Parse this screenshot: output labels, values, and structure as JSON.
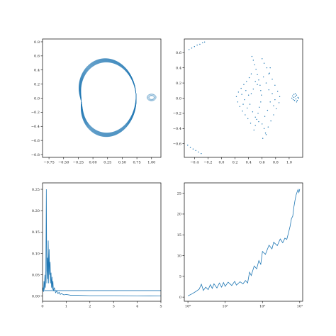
{
  "chart_data": [
    {
      "type": "line",
      "title": "",
      "xlabel": "",
      "ylabel": "",
      "xlim": [
        -0.86,
        1.16
      ],
      "ylim": [
        -0.84,
        0.84
      ],
      "xticks": [
        -0.75,
        -0.5,
        -0.25,
        0.0,
        0.25,
        0.5,
        0.75,
        1.0
      ],
      "xtick_labels": [
        "−0.75",
        "−0.50",
        "−0.25",
        "0.00",
        "0.25",
        "0.50",
        "0.75",
        "1.00"
      ],
      "yticks": [
        -0.8,
        -0.6,
        -0.4,
        -0.2,
        0.0,
        0.2,
        0.4,
        0.6,
        0.8
      ],
      "ytick_labels": [
        "−0.8",
        "−0.6",
        "−0.4",
        "−0.2",
        "0.0",
        "0.2",
        "0.4",
        "0.6",
        "0.8"
      ],
      "grid": false,
      "color": "#1f77b4",
      "series": [
        {
          "kind": "rosette",
          "center": [
            0.0,
            -0.02
          ],
          "radius_mean": 0.47,
          "radius_amplitude": 0.27,
          "x_scale": 1.0,
          "y_scale": 1.0,
          "lobes": 7.3,
          "turns": 38
        },
        {
          "kind": "small_loop",
          "center": [
            1.0,
            0.01
          ],
          "radius_x": 0.08,
          "radius_y": 0.05,
          "turns": 10
        }
      ]
    },
    {
      "type": "scatter",
      "title": "",
      "xlabel": "",
      "ylabel": "",
      "xlim": [
        -0.55,
        1.2
      ],
      "ylim": [
        -0.78,
        0.78
      ],
      "xticks": [
        -0.4,
        -0.2,
        0.0,
        0.2,
        0.4,
        0.6,
        0.8,
        1.0
      ],
      "xtick_labels": [
        "−0.4",
        "−0.2",
        "0.0",
        "0.2",
        "0.4",
        "0.6",
        "0.8",
        "1.0"
      ],
      "yticks": [
        -0.6,
        -0.4,
        -0.2,
        0.0,
        0.2,
        0.4,
        0.6
      ],
      "ytick_labels": [
        "−0.6",
        "−0.4",
        "−0.2",
        "0.0",
        "0.2",
        "0.4",
        "0.6"
      ],
      "grid": false,
      "color": "#1f77b4",
      "points": [
        [
          -0.48,
          0.64
        ],
        [
          -0.44,
          0.66
        ],
        [
          -0.4,
          0.68
        ],
        [
          -0.36,
          0.7
        ],
        [
          -0.32,
          0.71
        ],
        [
          -0.28,
          0.73
        ],
        [
          -0.25,
          0.74
        ],
        [
          -0.5,
          -0.62
        ],
        [
          -0.46,
          -0.65
        ],
        [
          -0.42,
          -0.67
        ],
        [
          -0.38,
          -0.69
        ],
        [
          -0.34,
          -0.71
        ],
        [
          -0.3,
          -0.73
        ],
        [
          0.45,
          0.55
        ],
        [
          0.47,
          0.5
        ],
        [
          0.49,
          0.44
        ],
        [
          0.51,
          0.38
        ],
        [
          0.53,
          0.31
        ],
        [
          0.55,
          0.24
        ],
        [
          0.57,
          0.17
        ],
        [
          0.58,
          0.1
        ],
        [
          0.59,
          0.04
        ],
        [
          0.58,
          -0.05
        ],
        [
          0.56,
          -0.12
        ],
        [
          0.54,
          -0.2
        ],
        [
          0.52,
          -0.28
        ],
        [
          0.5,
          -0.36
        ],
        [
          0.48,
          -0.42
        ],
        [
          0.6,
          0.52
        ],
        [
          0.63,
          0.46
        ],
        [
          0.67,
          0.4
        ],
        [
          0.71,
          0.33
        ],
        [
          0.75,
          0.25
        ],
        [
          0.79,
          0.17
        ],
        [
          0.83,
          0.09
        ],
        [
          0.86,
          0.02
        ],
        [
          0.85,
          -0.06
        ],
        [
          0.81,
          -0.14
        ],
        [
          0.77,
          -0.22
        ],
        [
          0.73,
          -0.3
        ],
        [
          0.69,
          -0.38
        ],
        [
          0.65,
          -0.46
        ],
        [
          0.61,
          -0.53
        ],
        [
          0.22,
          0.02
        ],
        [
          0.24,
          -0.05
        ],
        [
          0.27,
          -0.11
        ],
        [
          0.31,
          -0.17
        ],
        [
          0.35,
          -0.22
        ],
        [
          0.39,
          -0.27
        ],
        [
          0.43,
          -0.33
        ],
        [
          0.25,
          0.08
        ],
        [
          0.29,
          0.13
        ],
        [
          0.33,
          0.18
        ],
        [
          0.37,
          0.22
        ],
        [
          0.41,
          0.27
        ],
        [
          0.44,
          0.32
        ],
        [
          0.3,
          0.05
        ],
        [
          0.34,
          -0.02
        ],
        [
          0.36,
          0.1
        ],
        [
          0.4,
          0.04
        ],
        [
          0.42,
          -0.08
        ],
        [
          0.38,
          -0.13
        ],
        [
          0.32,
          -0.08
        ],
        [
          0.62,
          0.28
        ],
        [
          0.66,
          0.2
        ],
        [
          0.7,
          0.11
        ],
        [
          0.72,
          -0.05
        ],
        [
          0.68,
          -0.16
        ],
        [
          0.64,
          -0.24
        ],
        [
          0.6,
          -0.34
        ],
        [
          0.53,
          0.18
        ],
        [
          0.5,
          0.22
        ],
        [
          0.47,
          0.12
        ],
        [
          0.44,
          0.06
        ],
        [
          0.46,
          -0.18
        ],
        [
          0.5,
          -0.25
        ],
        [
          0.55,
          -0.31
        ],
        [
          0.75,
          0.06
        ],
        [
          0.79,
          -0.02
        ],
        [
          0.77,
          -0.1
        ],
        [
          0.7,
          0.32
        ],
        [
          0.72,
          0.4
        ],
        [
          0.63,
          -0.4
        ],
        [
          0.66,
          -0.48
        ],
        [
          1.05,
          0.03
        ],
        [
          1.07,
          0.05
        ],
        [
          1.09,
          0.02
        ],
        [
          1.11,
          0.04
        ],
        [
          1.13,
          0.01
        ],
        [
          1.06,
          -0.02
        ],
        [
          1.08,
          -0.03
        ],
        [
          1.1,
          -0.01
        ],
        [
          1.12,
          -0.03
        ],
        [
          1.14,
          0.0
        ],
        [
          1.04,
          0.0
        ],
        [
          1.09,
          0.06
        ],
        [
          1.11,
          -0.05
        ],
        [
          1.07,
          0.01
        ]
      ]
    },
    {
      "type": "line",
      "title": "",
      "xlabel": "",
      "ylabel": "",
      "xlim": [
        0,
        5
      ],
      "ylim": [
        -0.012,
        0.265
      ],
      "xticks": [
        0,
        1,
        2,
        3,
        4,
        5
      ],
      "xtick_labels": [
        "0",
        "1",
        "2",
        "3",
        "4",
        "5"
      ],
      "yticks": [
        0.0,
        0.05,
        0.1,
        0.15,
        0.2,
        0.25
      ],
      "ytick_labels": [
        "0.00",
        "0.05",
        "0.10",
        "0.15",
        "0.20",
        "0.25"
      ],
      "grid": false,
      "color": "#1f77b4",
      "series": [
        {
          "name": "",
          "x": [
            0.0,
            0.02,
            0.04,
            0.06,
            0.08,
            0.1,
            0.12,
            0.14,
            0.16,
            0.18,
            0.2,
            0.22,
            0.24,
            0.26,
            0.28,
            0.3,
            0.32,
            0.34,
            0.36,
            0.38,
            0.4,
            0.42,
            0.44,
            0.46,
            0.5,
            0.55,
            0.6,
            0.65,
            0.7,
            0.75,
            0.8,
            0.9,
            1.0,
            1.2,
            1.5,
            2.0,
            2.5,
            3.0,
            3.5,
            4.0,
            4.5,
            5.0
          ],
          "y": [
            0.012,
            0.02,
            0.01,
            0.035,
            0.015,
            0.05,
            0.02,
            0.06,
            0.25,
            0.03,
            0.09,
            0.04,
            0.13,
            0.03,
            0.11,
            0.05,
            0.08,
            0.03,
            0.055,
            0.02,
            0.045,
            0.015,
            0.035,
            0.012,
            0.02,
            0.008,
            0.012,
            0.006,
            0.009,
            0.004,
            0.006,
            0.003,
            0.004,
            0.002,
            0.002,
            0.001,
            0.001,
            0.001,
            0.0008,
            0.0006,
            0.0005,
            0.0004
          ]
        },
        {
          "name": "",
          "x": [
            0.0,
            0.1,
            0.2,
            0.3,
            0.5,
            1.0,
            2.0,
            3.0,
            4.0,
            5.0
          ],
          "y": [
            0.013,
            0.013,
            0.013,
            0.013,
            0.013,
            0.013,
            0.013,
            0.013,
            0.013,
            0.013
          ]
        }
      ]
    },
    {
      "type": "line",
      "title": "",
      "xlabel": "",
      "ylabel": "",
      "xscale": "log",
      "xlim": [
        0.8,
        1200
      ],
      "ylim": [
        -1.0,
        27.5
      ],
      "xticks": [
        1,
        10,
        100,
        1000
      ],
      "xtick_labels": [
        "10⁰",
        "10¹",
        "10²",
        "10³"
      ],
      "yticks": [
        0,
        5,
        10,
        15,
        20,
        25
      ],
      "ytick_labels": [
        "0",
        "5",
        "10",
        "15",
        "20",
        "25"
      ],
      "grid": false,
      "color": "#1f77b4",
      "series": [
        {
          "name": "",
          "x": [
            1.0,
            1.3,
            1.6,
            2.0,
            2.3,
            2.6,
            3.0,
            3.5,
            4.0,
            4.5,
            5.0,
            6.0,
            7.0,
            8.0,
            9.0,
            10,
            12,
            15,
            18,
            20,
            25,
            30,
            35,
            40,
            45,
            50,
            60,
            70,
            80,
            90,
            100,
            120,
            150,
            180,
            200,
            250,
            300,
            350,
            400,
            450,
            500,
            550,
            600,
            650,
            700,
            750,
            800,
            850,
            900,
            950,
            1000
          ],
          "y": [
            0.3,
            0.8,
            1.3,
            1.9,
            3.1,
            1.6,
            2.4,
            1.8,
            3.0,
            2.1,
            3.2,
            2.2,
            3.4,
            2.4,
            3.5,
            2.6,
            3.6,
            2.8,
            3.8,
            2.9,
            3.7,
            3.2,
            4.0,
            3.4,
            6.0,
            5.2,
            7.5,
            6.8,
            8.8,
            7.9,
            11.0,
            10.3,
            12.5,
            11.6,
            13.2,
            12.4,
            14.0,
            13.1,
            14.2,
            13.9,
            15.5,
            17.0,
            18.9,
            19.5,
            21.8,
            23.4,
            24.6,
            25.3,
            25.9,
            25.2,
            26.0
          ]
        }
      ]
    }
  ]
}
